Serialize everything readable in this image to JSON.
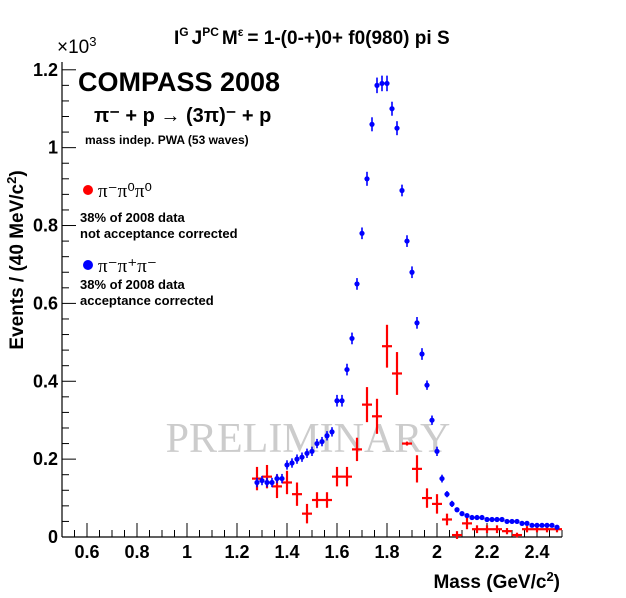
{
  "chart_data": {
    "type": "scatter",
    "title": "I^G J^PC M^ε = 1-(0-+)0+ f0(980) pi S",
    "title_parts": {
      "i": "I",
      "g": "G",
      "j": "J",
      "pc": "PC",
      "m": "M",
      "eps": "ε",
      "rest": "= 1-(0-+)0+ f0(980) pi S"
    },
    "xlabel": "Mass (GeV/c²)",
    "xlabel_parts": {
      "main": "Mass (GeV/c",
      "sup": "2",
      "end": ")"
    },
    "ylabel": "Events / (40 MeV/c²)",
    "ylabel_parts": {
      "main": "Events / (40 MeV/c",
      "sup": "2",
      "end": ")"
    },
    "exponent": "×10",
    "exponent_sup": "3",
    "xlim": [
      0.5,
      2.5
    ],
    "ylim": [
      0,
      1.22
    ],
    "x_ticks": [
      "0.6",
      "0.8",
      "1",
      "1.2",
      "1.4",
      "1.6",
      "1.8",
      "2",
      "2.2",
      "2.4"
    ],
    "y_ticks": [
      "0",
      "0.2",
      "0.4",
      "0.6",
      "0.8",
      "1",
      "1.2"
    ],
    "grid": false,
    "watermark": "PRELIMINARY",
    "annotations": {
      "experiment": "COMPASS 2008",
      "reaction": "π⁻ + p → (3π)⁻ + p",
      "pwa": "mass indep. PWA (53 waves)"
    },
    "legend": [
      {
        "name": "π⁻π⁰π⁰",
        "color": "#ff0000",
        "note1": "38% of 2008 data",
        "note2": "not acceptance corrected"
      },
      {
        "name": "π⁻π⁺π⁻",
        "color": "#0000ff",
        "note1": "38% of 2008 data",
        "note2": "acceptance corrected"
      }
    ],
    "series": [
      {
        "name": "pi- pi0 pi0 (not acceptance corrected)",
        "color": "#ff0000",
        "x": [
          1.28,
          1.32,
          1.36,
          1.4,
          1.44,
          1.48,
          1.52,
          1.56,
          1.6,
          1.64,
          1.68,
          1.72,
          1.76,
          1.8,
          1.84,
          1.88,
          1.92,
          1.96,
          2.0,
          2.04,
          2.08,
          2.12,
          2.16,
          2.2,
          2.24,
          2.28,
          2.32,
          2.36,
          2.4,
          2.44,
          2.48
        ],
        "y": [
          0.15,
          0.155,
          0.13,
          0.14,
          0.11,
          0.06,
          0.095,
          0.095,
          0.155,
          0.155,
          0.225,
          0.34,
          0.31,
          0.49,
          0.42,
          0.24,
          0.175,
          0.1,
          0.085,
          0.045,
          0.005,
          0.035,
          0.02,
          0.02,
          0.02,
          0.015,
          0.005,
          0.02,
          0.02,
          0.02,
          0.02
        ],
        "yerr": [
          0.03,
          0.03,
          0.03,
          0.03,
          0.03,
          0.025,
          0.02,
          0.02,
          0.025,
          0.025,
          0.03,
          0.045,
          0.045,
          0.055,
          0.055,
          0.005,
          0.035,
          0.025,
          0.025,
          0.015,
          0.01,
          0.015,
          0.01,
          0.01,
          0.01,
          0.008,
          0.006,
          0.008,
          0.008,
          0.008,
          0.008
        ]
      },
      {
        "name": "pi- pi+ pi- (acceptance corrected)",
        "color": "#0000ff",
        "x": [
          1.28,
          1.3,
          1.32,
          1.34,
          1.36,
          1.38,
          1.4,
          1.42,
          1.44,
          1.46,
          1.48,
          1.5,
          1.52,
          1.54,
          1.56,
          1.58,
          1.6,
          1.62,
          1.64,
          1.66,
          1.68,
          1.7,
          1.72,
          1.74,
          1.76,
          1.78,
          1.8,
          1.82,
          1.84,
          1.86,
          1.88,
          1.9,
          1.92,
          1.94,
          1.96,
          1.98,
          2.0,
          2.02,
          2.04,
          2.06,
          2.08,
          2.1,
          2.12,
          2.14,
          2.16,
          2.18,
          2.2,
          2.22,
          2.24,
          2.26,
          2.28,
          2.3,
          2.32,
          2.34,
          2.36,
          2.38,
          2.4,
          2.42,
          2.44,
          2.46,
          2.48
        ],
        "y": [
          0.14,
          0.145,
          0.14,
          0.14,
          0.15,
          0.15,
          0.185,
          0.19,
          0.2,
          0.205,
          0.215,
          0.22,
          0.24,
          0.245,
          0.26,
          0.27,
          0.35,
          0.35,
          0.43,
          0.51,
          0.65,
          0.78,
          0.92,
          1.06,
          1.16,
          1.165,
          1.165,
          1.1,
          1.05,
          0.89,
          0.76,
          0.68,
          0.55,
          0.47,
          0.39,
          0.3,
          0.22,
          0.15,
          0.11,
          0.085,
          0.07,
          0.06,
          0.055,
          0.05,
          0.05,
          0.05,
          0.045,
          0.045,
          0.045,
          0.045,
          0.04,
          0.04,
          0.04,
          0.035,
          0.035,
          0.03,
          0.03,
          0.03,
          0.03,
          0.03,
          0.025
        ],
        "yerr": [
          0.012,
          0.012,
          0.012,
          0.012,
          0.012,
          0.012,
          0.012,
          0.012,
          0.012,
          0.012,
          0.012,
          0.012,
          0.012,
          0.012,
          0.012,
          0.012,
          0.015,
          0.015,
          0.015,
          0.015,
          0.015,
          0.015,
          0.018,
          0.018,
          0.02,
          0.02,
          0.02,
          0.018,
          0.018,
          0.015,
          0.015,
          0.015,
          0.015,
          0.015,
          0.012,
          0.012,
          0.012,
          0.01,
          0.008,
          0.008,
          0.006,
          0.005,
          0.005,
          0.005,
          0.005,
          0.005,
          0.005,
          0.005,
          0.005,
          0.005,
          0.005,
          0.005,
          0.005,
          0.005,
          0.005,
          0.005,
          0.005,
          0.005,
          0.005,
          0.005,
          0.005
        ]
      }
    ]
  }
}
